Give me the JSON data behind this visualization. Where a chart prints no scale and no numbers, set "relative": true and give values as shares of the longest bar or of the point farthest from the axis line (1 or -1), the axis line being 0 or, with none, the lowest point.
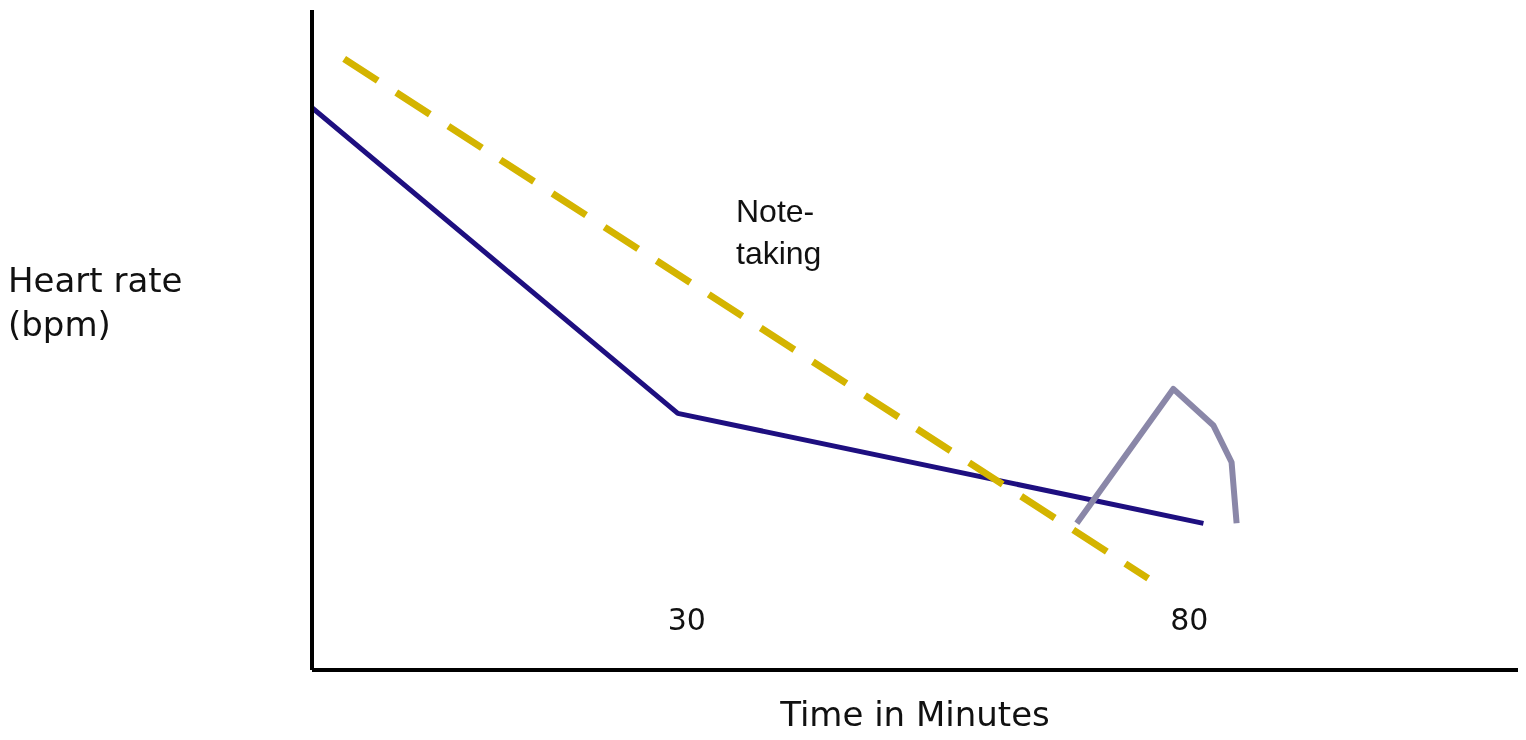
{
  "chart_data": {
    "type": "line",
    "xlabel": "Time in Minutes",
    "ylabel": "Heart rate (bpm)",
    "relative": true,
    "xlim": [
      -7.3,
      112.7
    ],
    "xticks": [
      30,
      80
    ],
    "grid": false,
    "marker": "none",
    "series": [
      {
        "color": "#1e0f80",
        "x": [
          -7.3,
          29.1,
          81.4
        ],
        "values": [
          0.92,
          0.42,
          0.24
        ],
        "line_style": "solid"
      },
      {
        "color": "#d4b400",
        "x": [
          -4.1,
          75.9
        ],
        "values": [
          1,
          0.15
        ],
        "line_style": "dashed"
      },
      {
        "color": "#8a87a8",
        "x": [
          68.8,
          78.4,
          82.4,
          84.2,
          84.7
        ],
        "values": [
          0.24,
          0.46,
          0.4,
          0.34,
          0.24
        ],
        "line_style": "solid"
      }
    ],
    "annotations": [
      "Note-taking"
    ]
  }
}
